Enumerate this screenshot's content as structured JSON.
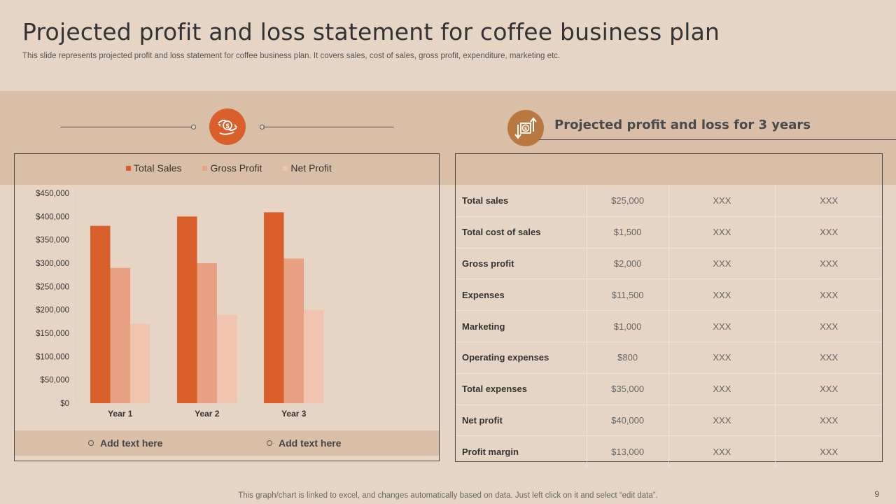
{
  "title": "Projected profit and loss statement for coffee business plan",
  "subtitle": "This slide represents projected profit and loss statement for coffee business plan. It covers sales, cost of sales, gross profit, expenditure, marketing etc.",
  "left_icon": "money-hand-icon",
  "right_icon": "money-exchange-icon",
  "right_title": "Projected profit and loss for 3 years",
  "colors": {
    "total_sales": "#d95f2b",
    "gross_profit": "#e9a183",
    "net_profit": "#f0c3ae",
    "accent": "#d95f2b",
    "icon_right": "#b9783f"
  },
  "chart_data": {
    "type": "bar",
    "categories": [
      "Year 1",
      "Year 2",
      "Year 3"
    ],
    "series": [
      {
        "name": "Total Sales",
        "values": [
          380000,
          400000,
          409000
        ]
      },
      {
        "name": "Gross Profit",
        "values": [
          290000,
          300000,
          310000
        ]
      },
      {
        "name": "Net Profit",
        "values": [
          170000,
          190000,
          200000
        ]
      }
    ],
    "ylim": [
      0,
      450000
    ],
    "yticks": [
      "$0",
      "$50,000",
      "$100,000",
      "$150,000",
      "$200,000",
      "$250,000",
      "$300,000",
      "$350,000",
      "$400,000",
      "$450,000"
    ],
    "legend_position": "top",
    "grid": false
  },
  "add_text": [
    "Add text here",
    "Add text here"
  ],
  "table": {
    "rows": [
      {
        "label": "Total sales",
        "values": [
          "$25,000",
          "XXX",
          "XXX"
        ]
      },
      {
        "label": "Total cost of sales",
        "values": [
          "$1,500",
          "XXX",
          "XXX"
        ]
      },
      {
        "label": "Gross profit",
        "values": [
          "$2,000",
          "XXX",
          "XXX"
        ]
      },
      {
        "label": "Expenses",
        "values": [
          "$11,500",
          "XXX",
          "XXX"
        ]
      },
      {
        "label": "Marketing",
        "values": [
          "$1,000",
          "XXX",
          "XXX"
        ]
      },
      {
        "label": "Operating expenses",
        "values": [
          "$800",
          "XXX",
          "XXX"
        ]
      },
      {
        "label": "Total expenses",
        "values": [
          "$35,000",
          "XXX",
          "XXX"
        ]
      },
      {
        "label": "Net profit",
        "values": [
          "$40,000",
          "XXX",
          "XXX"
        ]
      },
      {
        "label": "Profit margin",
        "values": [
          "$13,000",
          "XXX",
          "XXX"
        ]
      }
    ]
  },
  "footnote": "This graph/chart is linked to excel, and changes automatically based on data. Just left click on it and select “edit data”.",
  "page_number": "9"
}
